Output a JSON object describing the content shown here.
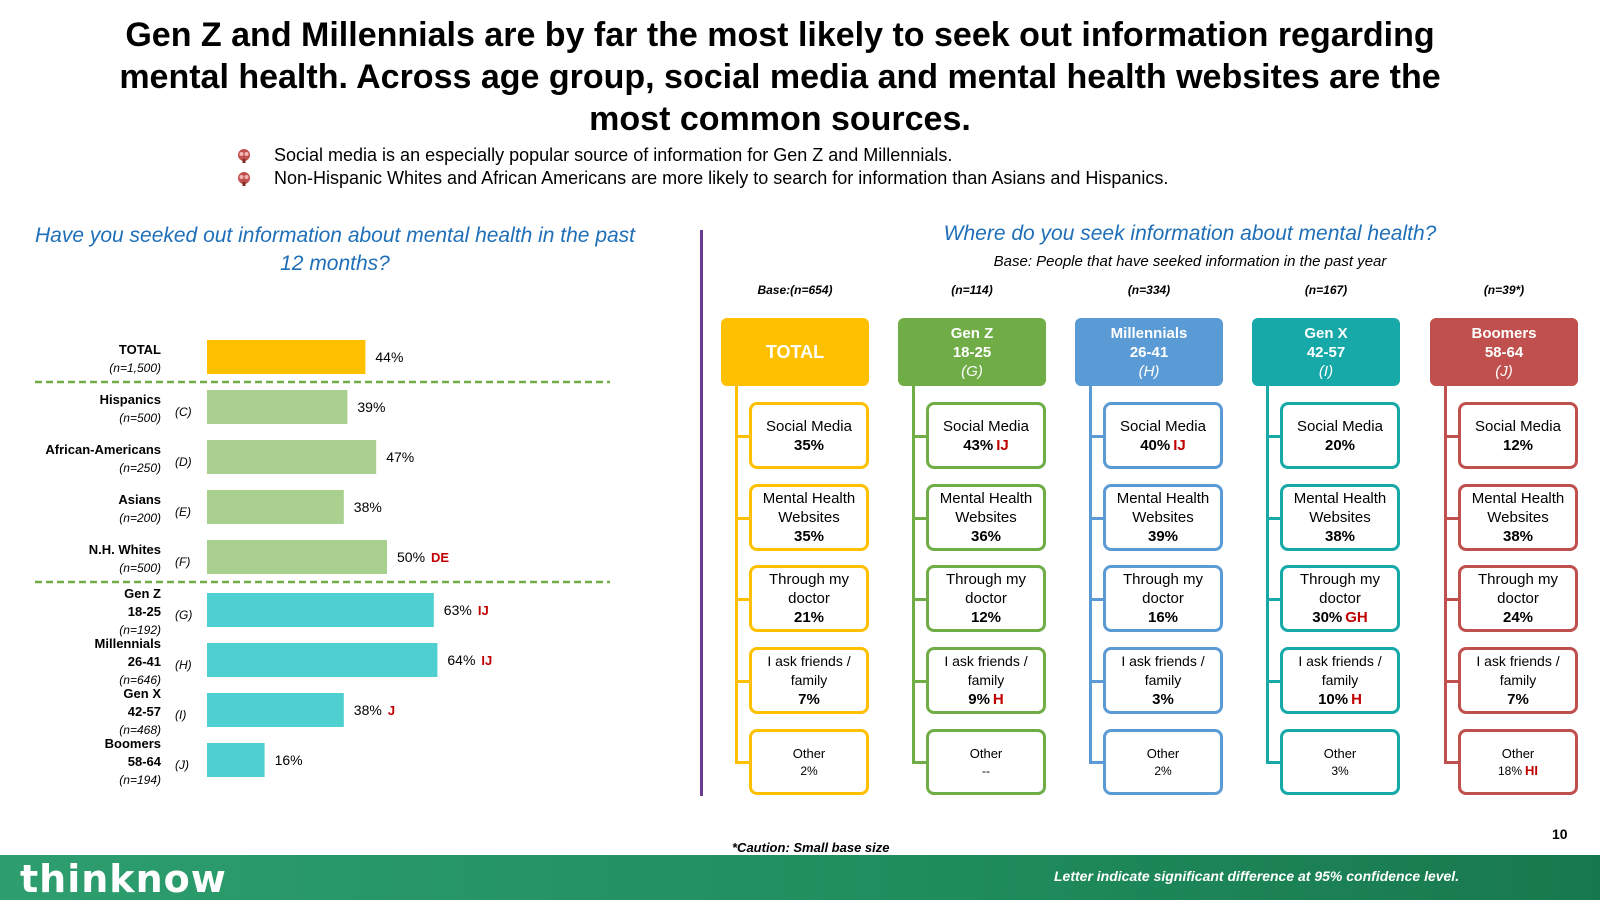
{
  "headline": "Gen Z and Millennials are by far the most likely to seek out information regarding mental health. Across age group, social media and mental health websites are the most common sources.",
  "bullets": [
    "Social media is an especially popular source of information for Gen Z and Millennials.",
    "Non-Hispanic Whites and African Americans are more likely to search for information than Asians and Hispanics."
  ],
  "left_question": "Have you seeked out information about mental health in the past 12 months?",
  "right_question": "Where do you seek information about mental health?",
  "right_base": "Base: People that have seeked information in the past year",
  "caution": "*Caution: Small base size",
  "page_number": "10",
  "footer_note": "Letter indicate significant difference at 95% confidence level.",
  "logo": "thinknow",
  "colors": {
    "total": "#ffc000",
    "ethnicity": "#a9d08e",
    "age": "#4dd0cf",
    "sig": "#c00000",
    "divider": "#6a3b8f",
    "question": "#1f6fb8"
  },
  "chart_data": [
    {
      "type": "bar",
      "orientation": "horizontal",
      "title": "Have you seeked out information about mental health in the past 12 months?",
      "unit": "%",
      "xlim": [
        0,
        100
      ],
      "categories": [
        {
          "name": "TOTAL",
          "sub": "",
          "n": "(n=1,500)",
          "letter": "",
          "value": 44,
          "sig": "",
          "group": "total"
        },
        {
          "name": "Hispanics",
          "sub": "",
          "n": "(n=500)",
          "letter": "(C)",
          "value": 39,
          "sig": "",
          "group": "ethnicity"
        },
        {
          "name": "African-Americans",
          "sub": "",
          "n": "(n=250)",
          "letter": "(D)",
          "value": 47,
          "sig": "",
          "group": "ethnicity"
        },
        {
          "name": "Asians",
          "sub": "",
          "n": "(n=200)",
          "letter": "(E)",
          "value": 38,
          "sig": "",
          "group": "ethnicity"
        },
        {
          "name": "N.H. Whites",
          "sub": "",
          "n": "(n=500)",
          "letter": "(F)",
          "value": 50,
          "sig": "DE",
          "group": "ethnicity"
        },
        {
          "name": "Gen Z",
          "sub": "18-25",
          "n": "(n=192)",
          "letter": "(G)",
          "value": 63,
          "sig": "IJ",
          "group": "age"
        },
        {
          "name": "Millennials",
          "sub": "26-41",
          "n": "(n=646)",
          "letter": "(H)",
          "value": 64,
          "sig": "IJ",
          "group": "age"
        },
        {
          "name": "Gen X",
          "sub": "42-57",
          "n": "(n=468)",
          "letter": "(I)",
          "value": 38,
          "sig": "J",
          "group": "age"
        },
        {
          "name": "Boomers",
          "sub": "58-64",
          "n": "(n=194)",
          "letter": "(J)",
          "value": 16,
          "sig": "",
          "group": "age"
        }
      ]
    },
    {
      "type": "table",
      "title": "Where do you seek information about mental health?",
      "unit": "%",
      "columns": [
        {
          "n": "Base:(n=654)",
          "title": "TOTAL",
          "sub": "",
          "letter": "",
          "color": "#ffc000",
          "sources": [
            {
              "label": "Social Media",
              "value": "35%",
              "sig": ""
            },
            {
              "label": "Mental Health Websites",
              "value": "35%",
              "sig": ""
            },
            {
              "label": "Through my doctor",
              "value": "21%",
              "sig": ""
            },
            {
              "label": "I ask friends / family",
              "value": "7%",
              "sig": ""
            },
            {
              "label": "Other",
              "value": "2%",
              "sig": ""
            }
          ]
        },
        {
          "n": "(n=114)",
          "title": "Gen Z",
          "sub": "18-25",
          "letter": "(G)",
          "color": "#70ad47",
          "sources": [
            {
              "label": "Social Media",
              "value": "43%",
              "sig": "IJ"
            },
            {
              "label": "Mental Health Websites",
              "value": "36%",
              "sig": ""
            },
            {
              "label": "Through my doctor",
              "value": "12%",
              "sig": ""
            },
            {
              "label": "I ask friends / family",
              "value": "9%",
              "sig": "H"
            },
            {
              "label": "Other",
              "value": "--",
              "sig": ""
            }
          ]
        },
        {
          "n": "(n=334)",
          "title": "Millennials",
          "sub": "26-41",
          "letter": "(H)",
          "color": "#5b9bd5",
          "sources": [
            {
              "label": "Social Media",
              "value": "40%",
              "sig": "IJ"
            },
            {
              "label": "Mental Health Websites",
              "value": "39%",
              "sig": ""
            },
            {
              "label": "Through my doctor",
              "value": "16%",
              "sig": ""
            },
            {
              "label": "I ask friends / family",
              "value": "3%",
              "sig": ""
            },
            {
              "label": "Other",
              "value": "2%",
              "sig": ""
            }
          ]
        },
        {
          "n": "(n=167)",
          "title": "Gen X",
          "sub": "42-57",
          "letter": "(I)",
          "color": "#17a8a8",
          "sources": [
            {
              "label": "Social Media",
              "value": "20%",
              "sig": ""
            },
            {
              "label": "Mental Health Websites",
              "value": "38%",
              "sig": ""
            },
            {
              "label": "Through my doctor",
              "value": "30%",
              "sig": "GH"
            },
            {
              "label": "I ask friends / family",
              "value": "10%",
              "sig": "H"
            },
            {
              "label": "Other",
              "value": "3%",
              "sig": ""
            }
          ]
        },
        {
          "n": "(n=39*)",
          "title": "Boomers",
          "sub": "58-64",
          "letter": "(J)",
          "color": "#c0504d",
          "sources": [
            {
              "label": "Social Media",
              "value": "12%",
              "sig": ""
            },
            {
              "label": "Mental Health Websites",
              "value": "38%",
              "sig": ""
            },
            {
              "label": "Through my doctor",
              "value": "24%",
              "sig": ""
            },
            {
              "label": "I ask friends / family",
              "value": "7%",
              "sig": ""
            },
            {
              "label": "Other",
              "value": "18%",
              "sig": "HI"
            }
          ]
        }
      ]
    }
  ]
}
